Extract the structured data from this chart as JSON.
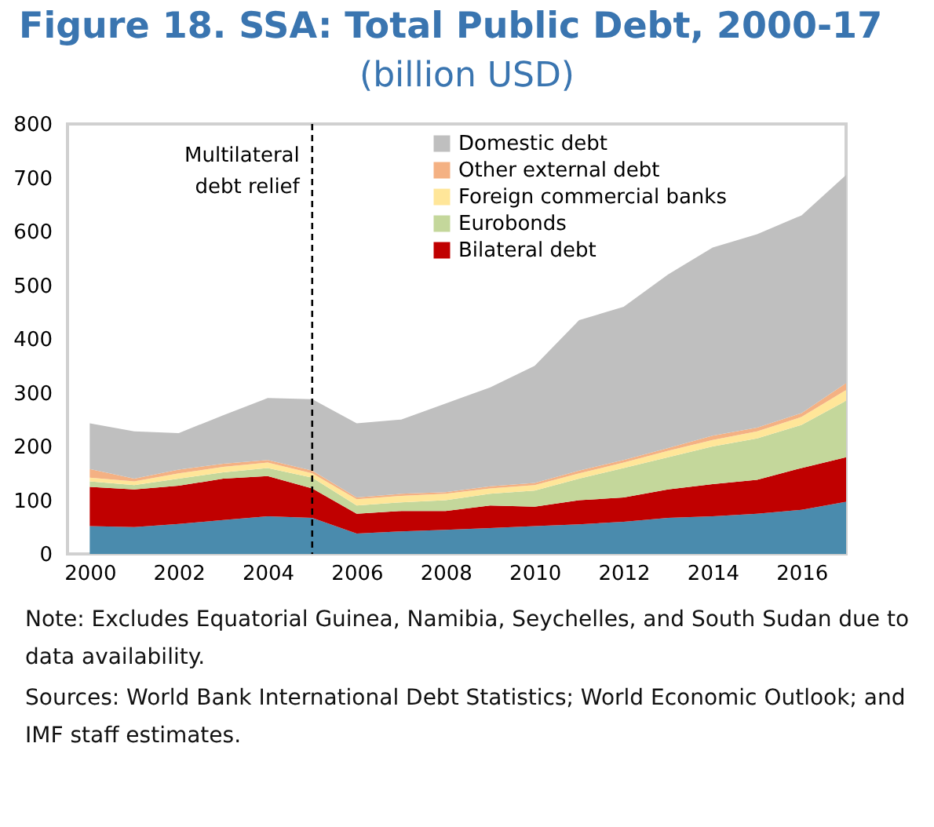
{
  "chart_data": {
    "type": "area",
    "stacked": true,
    "title": "Figure 18. SSA: Total Public Debt, 2000-17",
    "subtitle": "(billion USD)",
    "x": [
      2000,
      2001,
      2002,
      2003,
      2004,
      2005,
      2006,
      2007,
      2008,
      2009,
      2010,
      2011,
      2012,
      2013,
      2014,
      2015,
      2016,
      2017
    ],
    "series": [
      {
        "color": "#4a8bad",
        "values": [
          52,
          50,
          56,
          63,
          70,
          67,
          38,
          42,
          45,
          48,
          52,
          55,
          60,
          67,
          70,
          75,
          82,
          97
        ]
      },
      {
        "name": "Bilateral debt",
        "color": "#c00000",
        "values": [
          73,
          70,
          71,
          77,
          75,
          55,
          37,
          38,
          35,
          42,
          36,
          45,
          45,
          53,
          60,
          63,
          78,
          83
        ]
      },
      {
        "name": "Eurobonds",
        "color": "#c4d79b",
        "values": [
          10,
          8,
          13,
          12,
          15,
          20,
          15,
          16,
          20,
          22,
          30,
          40,
          55,
          60,
          70,
          77,
          80,
          105
        ]
      },
      {
        "name": "Foreign commercial banks",
        "color": "#ffe699",
        "values": [
          7,
          7,
          10,
          10,
          10,
          8,
          12,
          12,
          12,
          10,
          10,
          10,
          10,
          12,
          12,
          13,
          15,
          20
        ]
      },
      {
        "name": "Other external debt",
        "color": "#f4b183",
        "values": [
          16,
          5,
          7,
          6,
          5,
          5,
          3,
          4,
          3,
          4,
          4,
          5,
          5,
          5,
          8,
          7,
          7,
          13
        ]
      },
      {
        "name": "Domestic debt",
        "color": "#bfbfbf",
        "values": [
          85,
          88,
          68,
          90,
          115,
          133,
          138,
          138,
          165,
          184,
          218,
          280,
          285,
          323,
          350,
          360,
          368,
          387
        ]
      }
    ],
    "xlim": [
      1999.5,
      2017
    ],
    "xticks": [
      2000,
      2002,
      2004,
      2006,
      2008,
      2010,
      2012,
      2014,
      2016
    ],
    "ylim": [
      0,
      800
    ],
    "yticks": [
      0,
      100,
      200,
      300,
      400,
      500,
      600,
      700,
      800
    ],
    "ref_lines": [
      {
        "axis": "x",
        "value": 2005,
        "label": "Multilateral debt relief",
        "line_style": "dashed",
        "color": "#000000"
      }
    ],
    "legend": "top right",
    "grid": false,
    "annotations": [
      "Note: Excludes Equatorial Guinea, Namibia, Seychelles, and South Sudan due to data availability.",
      "Sources: World Bank International Debt Statistics; World Economic Outlook; and IMF staff estimates."
    ]
  }
}
